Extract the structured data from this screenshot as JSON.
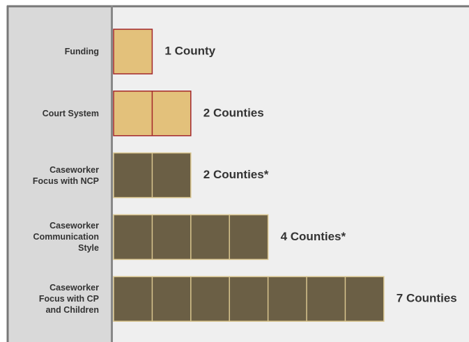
{
  "chart_data": {
    "type": "bar",
    "orientation": "horizontal",
    "categories": [
      "Funding",
      "Court System",
      "Caseworker\nFocus with NCP",
      "Caseworker\nCommunication\nStyle",
      "Caseworker\nFocus with CP\nand Children"
    ],
    "values": [
      1,
      2,
      2,
      4,
      7
    ],
    "value_labels": [
      "1 County",
      "2 Counties",
      "2 Counties*",
      "4 Counties*",
      "7 Counties"
    ],
    "colors": [
      "#e3c17b",
      "#e3c17b",
      "#6b5f45",
      "#6b5f45",
      "#6b5f45"
    ],
    "border_colors": [
      "#a3272b",
      "#a3272b",
      "#d9c58e",
      "#d9c58e",
      "#d9c58e"
    ]
  }
}
